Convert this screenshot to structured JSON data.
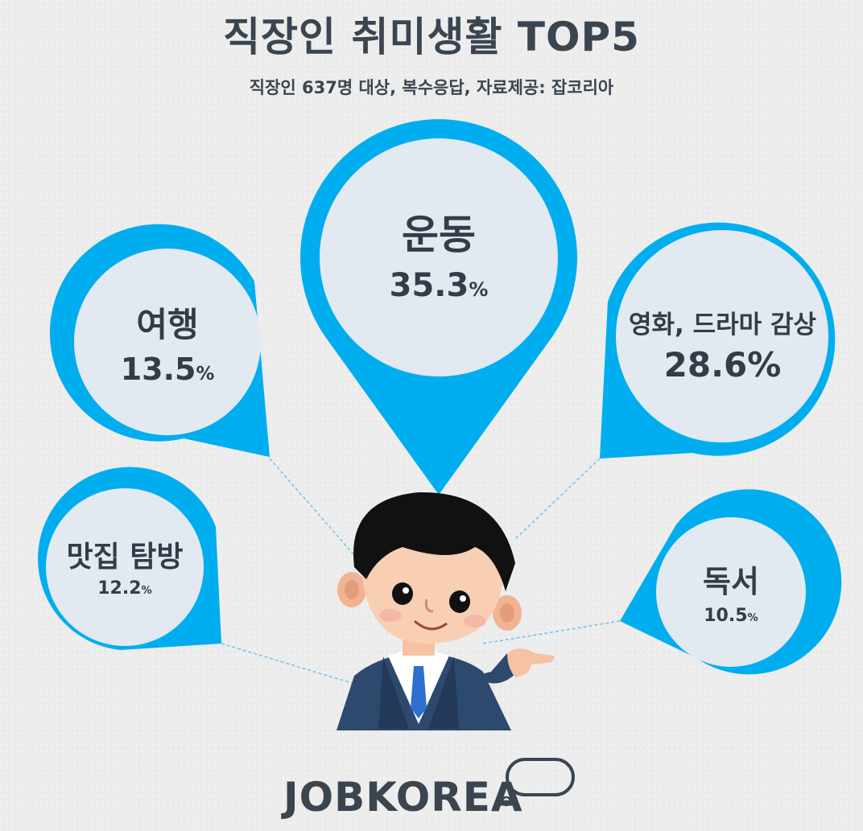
{
  "header": {
    "title": "직장인 취미생활 TOP5",
    "subtitle": "직장인 637명 대상, 복수응답,  자료제공: 잡코리아"
  },
  "hobbies": [
    {
      "label": "운동",
      "value": "35.3",
      "unit": "%"
    },
    {
      "label": "영화, 드라마 감상",
      "value": "28.6",
      "unit": "%"
    },
    {
      "label": "여행",
      "value": "13.5",
      "unit": "%"
    },
    {
      "label": "맛집 탐방",
      "value": "12.2",
      "unit": "%"
    },
    {
      "label": "독서",
      "value": "10.5",
      "unit": "%"
    }
  ],
  "brand": {
    "logo_text": "JOBKOREA"
  },
  "colors": {
    "accent": "#00aeef",
    "bubble_fill": "#e3e9f0",
    "text": "#333d47"
  }
}
